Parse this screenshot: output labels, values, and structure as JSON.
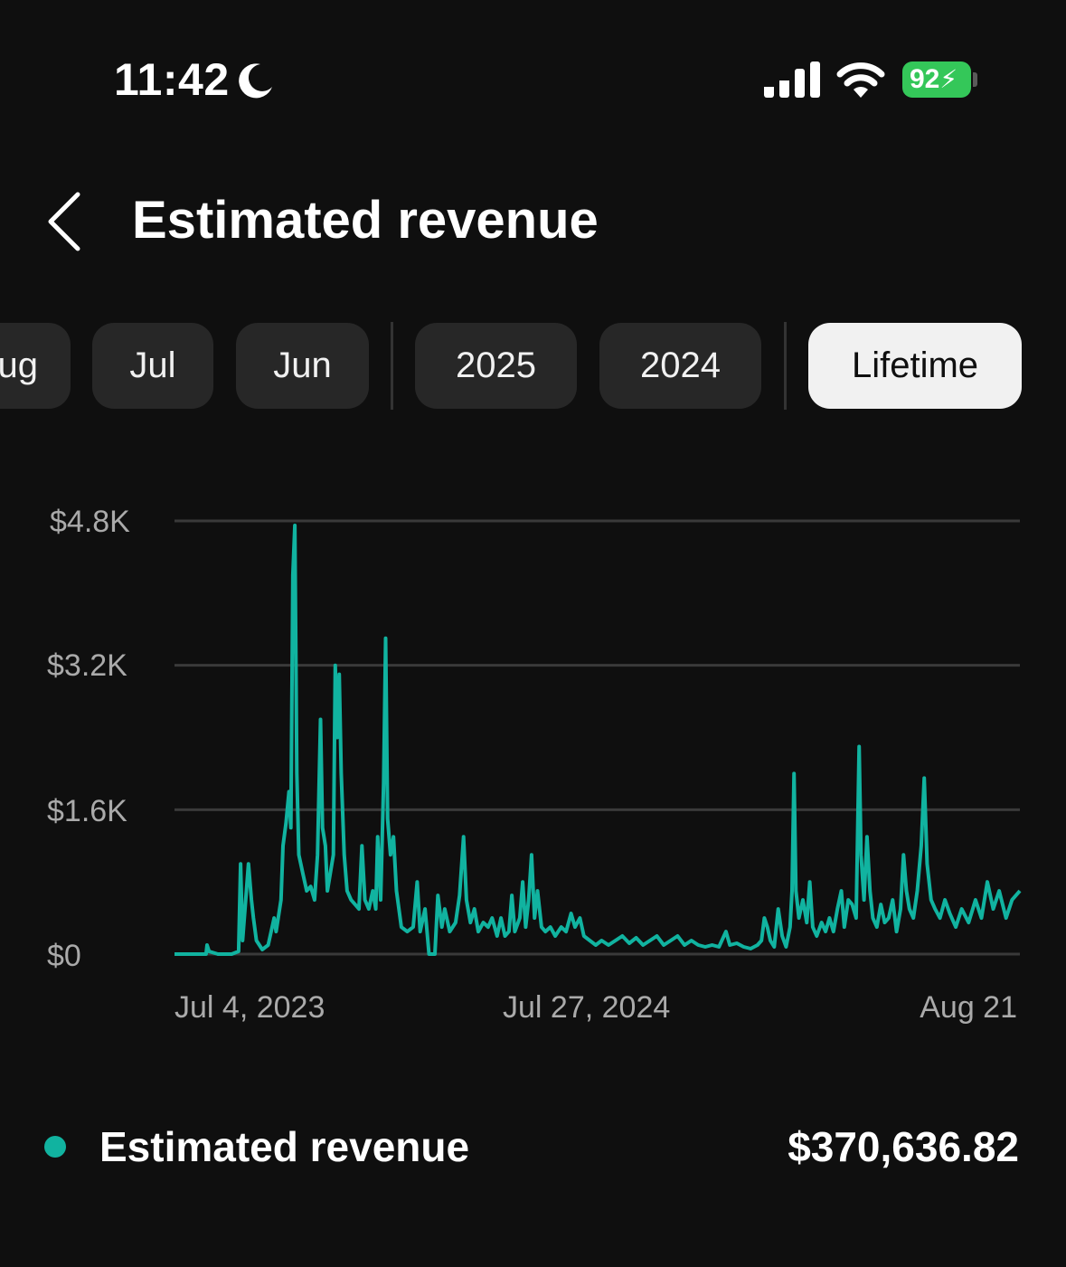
{
  "status_bar": {
    "time": "11:42",
    "battery": "92",
    "icons": [
      "moon-icon",
      "cellular-signal-icon",
      "wifi-icon",
      "battery-charging-icon"
    ]
  },
  "header": {
    "title": "Estimated revenue",
    "back_icon": "chevron-left-icon"
  },
  "period_chips": [
    {
      "label": "Aug",
      "visible_text": "ug",
      "selected": false
    },
    {
      "label": "Jul",
      "selected": false
    },
    {
      "label": "Jun",
      "selected": false
    },
    {
      "label": "2025",
      "selected": false
    },
    {
      "label": "2024",
      "selected": false
    },
    {
      "label": "Lifetime",
      "selected": true
    }
  ],
  "colors": {
    "background": "#0f0f0f",
    "chip": "#272727",
    "chip_selected": "#f1f1f1",
    "series": "#11b3a0",
    "grid": "#3a3a3a",
    "tick_text": "#aaaaaa",
    "battery": "#34c759"
  },
  "chart_data": {
    "type": "line",
    "title": "",
    "xlabel": "",
    "ylabel": "",
    "ylim": [
      0,
      4800
    ],
    "yticks": [
      {
        "value": 0,
        "label": "$0"
      },
      {
        "value": 1600,
        "label": "$1.6K"
      },
      {
        "value": 3200,
        "label": "$3.2K"
      },
      {
        "value": 4800,
        "label": "$4.8K"
      }
    ],
    "xlim": [
      "2023-04-18",
      "2025-08-22"
    ],
    "xticks": [
      {
        "date": "2023-07-04",
        "label": "Jul 4, 2023"
      },
      {
        "date": "2024-07-27",
        "label": "Jul 27, 2024"
      },
      {
        "date": "2025-08-21",
        "label": "Aug 21"
      }
    ],
    "grid": true,
    "series": [
      {
        "name": "Estimated revenue",
        "total": "$370,636.82",
        "points": [
          [
            "2023-04-18",
            0
          ],
          [
            "2023-05-01",
            0
          ],
          [
            "2023-05-20",
            0
          ],
          [
            "2023-05-21",
            100
          ],
          [
            "2023-05-23",
            30
          ],
          [
            "2023-06-01",
            0
          ],
          [
            "2023-06-15",
            0
          ],
          [
            "2023-06-22",
            30
          ],
          [
            "2023-06-24",
            1000
          ],
          [
            "2023-06-26",
            150
          ],
          [
            "2023-07-02",
            1000
          ],
          [
            "2023-07-05",
            600
          ],
          [
            "2023-07-07",
            400
          ],
          [
            "2023-07-10",
            150
          ],
          [
            "2023-07-16",
            50
          ],
          [
            "2023-07-22",
            100
          ],
          [
            "2023-07-28",
            400
          ],
          [
            "2023-07-30",
            250
          ],
          [
            "2023-08-04",
            600
          ],
          [
            "2023-08-06",
            1200
          ],
          [
            "2023-08-09",
            1450
          ],
          [
            "2023-08-12",
            1800
          ],
          [
            "2023-08-14",
            1400
          ],
          [
            "2023-08-16",
            4200
          ],
          [
            "2023-08-18",
            4750
          ],
          [
            "2023-08-20",
            2000
          ],
          [
            "2023-08-22",
            1100
          ],
          [
            "2023-08-26",
            900
          ],
          [
            "2023-08-30",
            700
          ],
          [
            "2023-09-03",
            750
          ],
          [
            "2023-09-07",
            600
          ],
          [
            "2023-09-10",
            1100
          ],
          [
            "2023-09-13",
            2600
          ],
          [
            "2023-09-15",
            1400
          ],
          [
            "2023-09-18",
            1200
          ],
          [
            "2023-09-20",
            700
          ],
          [
            "2023-09-23",
            900
          ],
          [
            "2023-09-26",
            1100
          ],
          [
            "2023-09-28",
            3200
          ],
          [
            "2023-09-30",
            2400
          ],
          [
            "2023-10-02",
            3100
          ],
          [
            "2023-10-04",
            2000
          ],
          [
            "2023-10-07",
            1100
          ],
          [
            "2023-10-10",
            700
          ],
          [
            "2023-10-14",
            600
          ],
          [
            "2023-10-18",
            550
          ],
          [
            "2023-10-22",
            500
          ],
          [
            "2023-10-25",
            1200
          ],
          [
            "2023-10-28",
            600
          ],
          [
            "2023-11-01",
            500
          ],
          [
            "2023-11-05",
            700
          ],
          [
            "2023-11-08",
            500
          ],
          [
            "2023-11-10",
            1300
          ],
          [
            "2023-11-13",
            600
          ],
          [
            "2023-11-16",
            1900
          ],
          [
            "2023-11-18",
            3500
          ],
          [
            "2023-11-20",
            1500
          ],
          [
            "2023-11-23",
            1100
          ],
          [
            "2023-11-26",
            1300
          ],
          [
            "2023-11-29",
            700
          ],
          [
            "2023-12-04",
            300
          ],
          [
            "2023-12-10",
            250
          ],
          [
            "2023-12-16",
            300
          ],
          [
            "2023-12-20",
            800
          ],
          [
            "2023-12-23",
            250
          ],
          [
            "2023-12-28",
            500
          ],
          [
            "2024-01-01",
            0
          ],
          [
            "2024-01-07",
            0
          ],
          [
            "2024-01-10",
            650
          ],
          [
            "2024-01-14",
            300
          ],
          [
            "2024-01-17",
            500
          ],
          [
            "2024-01-22",
            250
          ],
          [
            "2024-01-28",
            350
          ],
          [
            "2024-02-01",
            650
          ],
          [
            "2024-02-05",
            1300
          ],
          [
            "2024-02-08",
            600
          ],
          [
            "2024-02-12",
            350
          ],
          [
            "2024-02-16",
            500
          ],
          [
            "2024-02-20",
            250
          ],
          [
            "2024-02-25",
            350
          ],
          [
            "2024-03-01",
            300
          ],
          [
            "2024-03-05",
            400
          ],
          [
            "2024-03-10",
            200
          ],
          [
            "2024-03-14",
            400
          ],
          [
            "2024-03-18",
            200
          ],
          [
            "2024-03-22",
            250
          ],
          [
            "2024-03-25",
            650
          ],
          [
            "2024-03-28",
            250
          ],
          [
            "2024-04-02",
            400
          ],
          [
            "2024-04-05",
            800
          ],
          [
            "2024-04-08",
            300
          ],
          [
            "2024-04-11",
            600
          ],
          [
            "2024-04-14",
            1100
          ],
          [
            "2024-04-17",
            400
          ],
          [
            "2024-04-20",
            700
          ],
          [
            "2024-04-24",
            300
          ],
          [
            "2024-04-28",
            250
          ],
          [
            "2024-05-03",
            300
          ],
          [
            "2024-05-08",
            200
          ],
          [
            "2024-05-14",
            300
          ],
          [
            "2024-05-19",
            250
          ],
          [
            "2024-05-24",
            450
          ],
          [
            "2024-05-28",
            300
          ],
          [
            "2024-06-02",
            400
          ],
          [
            "2024-06-06",
            200
          ],
          [
            "2024-06-12",
            150
          ],
          [
            "2024-06-18",
            100
          ],
          [
            "2024-06-24",
            150
          ],
          [
            "2024-07-01",
            100
          ],
          [
            "2024-07-08",
            150
          ],
          [
            "2024-07-15",
            200
          ],
          [
            "2024-07-22",
            120
          ],
          [
            "2024-07-29",
            180
          ],
          [
            "2024-08-05",
            100
          ],
          [
            "2024-08-12",
            150
          ],
          [
            "2024-08-19",
            200
          ],
          [
            "2024-08-26",
            100
          ],
          [
            "2024-09-02",
            150
          ],
          [
            "2024-09-09",
            200
          ],
          [
            "2024-09-16",
            100
          ],
          [
            "2024-09-23",
            150
          ],
          [
            "2024-09-30",
            100
          ],
          [
            "2024-10-07",
            80
          ],
          [
            "2024-10-14",
            100
          ],
          [
            "2024-10-21",
            80
          ],
          [
            "2024-10-28",
            250
          ],
          [
            "2024-11-01",
            100
          ],
          [
            "2024-11-08",
            120
          ],
          [
            "2024-11-15",
            80
          ],
          [
            "2024-11-22",
            60
          ],
          [
            "2024-11-29",
            100
          ],
          [
            "2024-12-03",
            150
          ],
          [
            "2024-12-06",
            400
          ],
          [
            "2024-12-09",
            300
          ],
          [
            "2024-12-12",
            150
          ],
          [
            "2024-12-16",
            80
          ],
          [
            "2024-12-20",
            500
          ],
          [
            "2024-12-24",
            200
          ],
          [
            "2024-12-28",
            80
          ],
          [
            "2025-01-01",
            300
          ],
          [
            "2025-01-03",
            700
          ],
          [
            "2025-01-05",
            2000
          ],
          [
            "2025-01-07",
            700
          ],
          [
            "2025-01-10",
            400
          ],
          [
            "2025-01-14",
            600
          ],
          [
            "2025-01-18",
            350
          ],
          [
            "2025-01-21",
            800
          ],
          [
            "2025-01-24",
            300
          ],
          [
            "2025-01-28",
            200
          ],
          [
            "2025-02-02",
            350
          ],
          [
            "2025-02-06",
            250
          ],
          [
            "2025-02-10",
            400
          ],
          [
            "2025-02-14",
            250
          ],
          [
            "2025-02-18",
            500
          ],
          [
            "2025-02-22",
            700
          ],
          [
            "2025-02-25",
            300
          ],
          [
            "2025-03-01",
            600
          ],
          [
            "2025-03-05",
            550
          ],
          [
            "2025-03-09",
            400
          ],
          [
            "2025-03-12",
            2300
          ],
          [
            "2025-03-14",
            1100
          ],
          [
            "2025-03-17",
            600
          ],
          [
            "2025-03-20",
            1300
          ],
          [
            "2025-03-23",
            700
          ],
          [
            "2025-03-26",
            400
          ],
          [
            "2025-03-30",
            300
          ],
          [
            "2025-04-03",
            550
          ],
          [
            "2025-04-07",
            350
          ],
          [
            "2025-04-11",
            400
          ],
          [
            "2025-04-15",
            600
          ],
          [
            "2025-04-19",
            250
          ],
          [
            "2025-04-23",
            500
          ],
          [
            "2025-04-26",
            1100
          ],
          [
            "2025-04-29",
            700
          ],
          [
            "2025-05-02",
            500
          ],
          [
            "2025-05-06",
            400
          ],
          [
            "2025-05-10",
            700
          ],
          [
            "2025-05-14",
            1200
          ],
          [
            "2025-05-17",
            1950
          ],
          [
            "2025-05-20",
            1000
          ],
          [
            "2025-05-24",
            600
          ],
          [
            "2025-05-28",
            500
          ],
          [
            "2025-06-02",
            400
          ],
          [
            "2025-06-07",
            600
          ],
          [
            "2025-06-12",
            450
          ],
          [
            "2025-06-18",
            300
          ],
          [
            "2025-06-24",
            500
          ],
          [
            "2025-07-01",
            350
          ],
          [
            "2025-07-08",
            600
          ],
          [
            "2025-07-14",
            400
          ],
          [
            "2025-07-20",
            800
          ],
          [
            "2025-07-26",
            500
          ],
          [
            "2025-08-01",
            700
          ],
          [
            "2025-08-08",
            400
          ],
          [
            "2025-08-14",
            600
          ],
          [
            "2025-08-22",
            700
          ]
        ]
      }
    ]
  }
}
